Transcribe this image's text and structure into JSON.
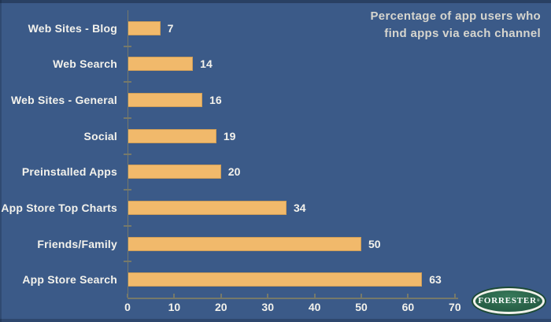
{
  "header": {
    "title": "Percentage of app users who\nfind apps via each channel"
  },
  "chart_data": {
    "type": "bar",
    "orientation": "horizontal",
    "title": "Percentage of app users who find apps via each channel",
    "categories": [
      "Web Sites - Blog",
      "Web Search",
      "Web Sites - General",
      "Social",
      "Preinstalled Apps",
      "App Store Top Charts",
      "Friends/Family",
      "App Store Search"
    ],
    "values": [
      7,
      14,
      16,
      19,
      20,
      34,
      50,
      63
    ],
    "xlabel": "",
    "ylabel": "",
    "xlim": [
      0,
      70
    ],
    "xticks": [
      0,
      10,
      20,
      30,
      40,
      50,
      60,
      70
    ],
    "grid": false,
    "value_labels": true,
    "legend": null
  },
  "colors": {
    "background": "#3b5a88",
    "bar_fill": "#f1b96b",
    "bar_border": "#cf9e58",
    "axis": "#76796a",
    "label_text": "#f3f2ec",
    "title_text": "#d6d5ce",
    "logo_green": "#2a6349",
    "logo_ring": "#f2f2ea"
  },
  "logo": {
    "text": "FORRESTER",
    "registered_mark": "®"
  }
}
